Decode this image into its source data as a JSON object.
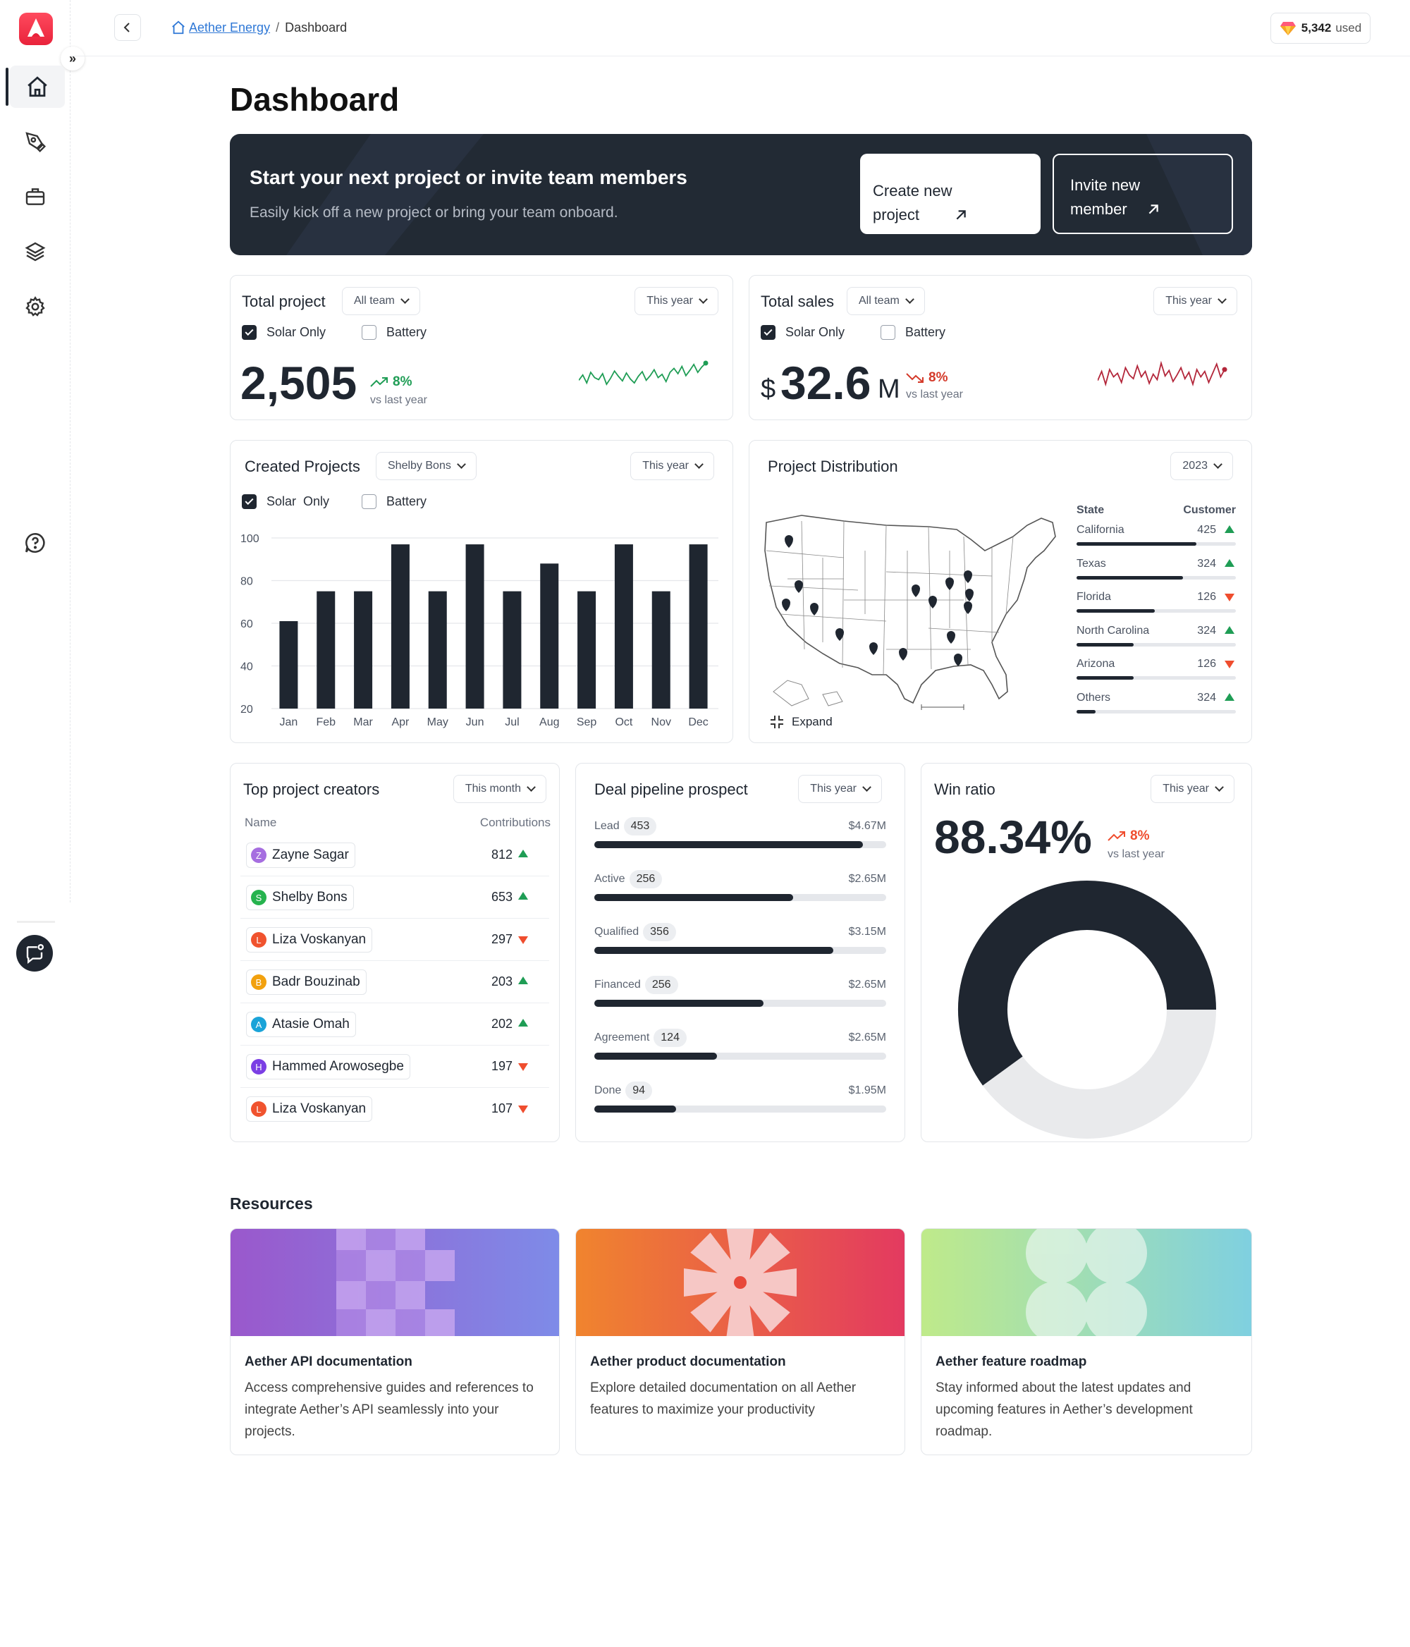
{
  "header": {
    "org": "Aether Energy",
    "separator": "/",
    "page": "Dashboard",
    "credits_value": "5,342",
    "credits_suffix": "used"
  },
  "page_title": "Dashboard",
  "banner": {
    "title": "Start your next project or invite team members",
    "subtitle": "Easily kick off a new project or bring your team onboard.",
    "create_line1": "Create new",
    "create_line2": "project",
    "invite_line1": "Invite new",
    "invite_line2": "member"
  },
  "total_project": {
    "title": "Total project",
    "team_filter": "All team",
    "period": "This year",
    "opt1": "Solar Only",
    "opt2": "Battery",
    "value": "2,505",
    "change": "8%",
    "change_label": "vs last year",
    "spark": [
      34,
      42,
      30,
      46,
      38,
      35,
      44,
      28,
      37,
      48,
      40,
      33,
      45,
      36,
      30,
      40,
      47,
      34,
      41,
      50,
      38,
      43,
      32,
      46,
      52,
      44,
      55,
      41,
      49,
      58,
      46,
      54,
      60
    ]
  },
  "total_sales": {
    "title": "Total sales",
    "team_filter": "All team",
    "period": "This year",
    "opt1": "Solar Only",
    "opt2": "Battery",
    "currency": "$",
    "value": "32.6",
    "unit": "M",
    "change": "8%",
    "change_label": "vs last year",
    "spark": [
      54,
      44,
      58,
      42,
      50,
      46,
      56,
      40,
      48,
      52,
      38,
      50,
      44,
      57,
      47,
      53,
      35,
      49,
      43,
      55,
      48,
      40,
      52,
      45,
      58,
      42,
      50,
      44,
      56,
      46,
      36,
      50,
      42
    ]
  },
  "created_projects": {
    "title": "Created Projects",
    "person_filter": "Shelby Bons",
    "period": "This year",
    "opt1": "Solar  Only",
    "opt2": "Battery"
  },
  "chart_data": {
    "type": "bar",
    "categories": [
      "Jan",
      "Feb",
      "Mar",
      "Apr",
      "May",
      "Jun",
      "Jul",
      "Aug",
      "Sep",
      "Oct",
      "Nov",
      "Dec"
    ],
    "values": [
      61,
      75,
      75,
      97,
      75,
      97,
      75,
      88,
      75,
      97,
      75,
      97
    ],
    "ylim": [
      20,
      100
    ],
    "yticks": [
      100,
      80,
      60,
      40,
      20
    ]
  },
  "distribution": {
    "title": "Project Distribution",
    "year": "2023",
    "col_state": "State",
    "col_customer": "Customer",
    "expand": "Expand",
    "rows": [
      {
        "state": "California",
        "value": "425",
        "trend": "up",
        "fill": 0.75
      },
      {
        "state": "Texas",
        "value": "324",
        "trend": "up",
        "fill": 0.67
      },
      {
        "state": "Florida",
        "value": "126",
        "trend": "down",
        "fill": 0.49
      },
      {
        "state": "North Carolina",
        "value": "324",
        "trend": "up",
        "fill": 0.36
      },
      {
        "state": "Arizona",
        "value": "126",
        "trend": "down",
        "fill": 0.36
      },
      {
        "state": "Others",
        "value": "324",
        "trend": "up",
        "fill": 0.12
      }
    ]
  },
  "creators": {
    "title": "Top project creators",
    "period": "This month",
    "col_name": "Name",
    "col_contrib": "Contributions",
    "rows": [
      {
        "initial": "Z",
        "name": "Zayne Sagar",
        "value": "812",
        "trend": "up",
        "color": "#a66ee0"
      },
      {
        "initial": "S",
        "name": "Shelby Bons",
        "value": "653",
        "trend": "up",
        "color": "#26b34e"
      },
      {
        "initial": "L",
        "name": "Liza Voskanyan",
        "value": "297",
        "trend": "down",
        "color": "#f0532e"
      },
      {
        "initial": "B",
        "name": "Badr Bouzinab",
        "value": "203",
        "trend": "up",
        "color": "#f2a10e"
      },
      {
        "initial": "A",
        "name": "Atasie Omah",
        "value": "202",
        "trend": "up",
        "color": "#1aa3d8"
      },
      {
        "initial": "H",
        "name": "Hammed Arowosegbe",
        "value": "197",
        "trend": "down",
        "color": "#7b3fe4"
      },
      {
        "initial": "L",
        "name": "Liza Voskanyan",
        "value": "107",
        "trend": "down",
        "color": "#f0532e"
      }
    ]
  },
  "pipeline": {
    "title": "Deal pipeline prospect",
    "period": "This year",
    "rows": [
      {
        "stage": "Lead",
        "count": "453",
        "amount": "$4.67M",
        "fill": 0.92
      },
      {
        "stage": "Active",
        "count": "256",
        "amount": "$2.65M",
        "fill": 0.68
      },
      {
        "stage": "Qualified",
        "count": "356",
        "amount": "$3.15M",
        "fill": 0.82
      },
      {
        "stage": "Financed",
        "count": "256",
        "amount": "$2.65M",
        "fill": 0.58
      },
      {
        "stage": "Agreement",
        "count": "124",
        "amount": "$2.65M",
        "fill": 0.42
      },
      {
        "stage": "Done",
        "count": "94",
        "amount": "$1.95M",
        "fill": 0.28
      }
    ]
  },
  "win_ratio": {
    "title": "Win ratio",
    "period": "This year",
    "value": "88.34%",
    "change": "8%",
    "change_label": "vs last year",
    "filled_fraction": 0.6
  },
  "resources": {
    "title": "Resources",
    "items": [
      {
        "title": "Aether API documentation",
        "desc": "Access comprehensive guides and references to integrate Aether’s API seamlessly into your projects."
      },
      {
        "title": "Aether product documentation",
        "desc": "Explore detailed documentation on all Aether features to maximize your productivity"
      },
      {
        "title": "Aether feature roadmap",
        "desc": "Stay informed about the latest updates and upcoming features in Aether’s development roadmap."
      }
    ]
  },
  "colors": {
    "dark": "#1f2630",
    "up": "#1f9d55",
    "down": "#ef4d2e",
    "track": "#e5e7eb"
  }
}
